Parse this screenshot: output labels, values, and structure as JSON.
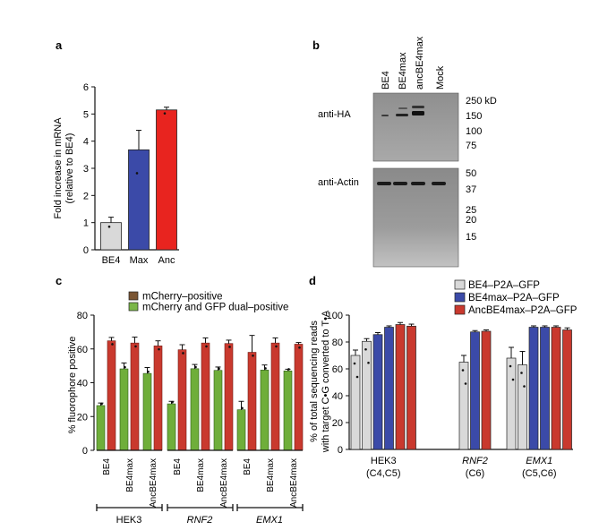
{
  "panels": {
    "a": "a",
    "b": "b",
    "c": "c",
    "d": "d"
  },
  "chart_data": [
    {
      "panel": "a",
      "type": "bar",
      "ylabel_lines": [
        "Fold increase in mRNA",
        "(relative to BE4)"
      ],
      "ylim": [
        0,
        6
      ],
      "yticks": [
        0,
        1,
        2,
        3,
        4,
        5,
        6
      ],
      "categories": [
        "BE4",
        "Max",
        "Anc"
      ],
      "values": [
        1.0,
        3.68,
        5.15
      ],
      "errors": [
        0.2,
        0.72,
        0.1
      ],
      "points": [
        [
          0.85
        ],
        [
          2.82
        ],
        [
          5.02
        ]
      ],
      "colors": [
        "#d9d9d9",
        "#3b4aa8",
        "#e8241f"
      ]
    },
    {
      "panel": "b",
      "type": "table",
      "lanes": [
        "BE4",
        "BE4max",
        "ancBE4max",
        "Mock"
      ],
      "blots": [
        {
          "label": "anti-HA",
          "markers": [
            "250 kD",
            "150",
            "100",
            "75"
          ]
        },
        {
          "label": "anti-Actin",
          "markers": [
            "50",
            "37",
            "25",
            "20",
            "15"
          ]
        }
      ]
    },
    {
      "panel": "c",
      "type": "bar",
      "ylabel": "% fluorophore positive",
      "ylim": [
        0,
        80
      ],
      "yticks": [
        0,
        20,
        40,
        60,
        80
      ],
      "series": [
        {
          "name": "mCherry–positive",
          "color": "#c9392e"
        },
        {
          "name": "mCherry and GFP dual–positive",
          "color": "#6fae3a"
        }
      ],
      "legend_colors": [
        "#7a5533",
        "#7ab648"
      ],
      "editors": [
        "BE4",
        "BE4max",
        "AncBE4max"
      ],
      "groups": [
        {
          "label": "HEK3",
          "italic": false,
          "mcherry": [
            64.8,
            63.5,
            61.8
          ],
          "dual": [
            26.5,
            48.2,
            45.5
          ],
          "mcherry_err": [
            2,
            3.5,
            3
          ],
          "dual_err": [
            1.5,
            3.5,
            3.5
          ]
        },
        {
          "label": "RNF2",
          "italic": true,
          "mcherry": [
            59.5,
            63.5,
            63.2
          ],
          "dual": [
            27.5,
            48.3,
            47.3
          ],
          "mcherry_err": [
            3,
            3,
            2
          ],
          "dual_err": [
            1.5,
            2.5,
            2
          ]
        },
        {
          "label": "EMX1",
          "italic": true,
          "mcherry": [
            58,
            63.5,
            62.8
          ],
          "dual": [
            24,
            47.5,
            47
          ],
          "mcherry_err": [
            10,
            3,
            1
          ],
          "dual_err": [
            5,
            3,
            1
          ]
        }
      ]
    },
    {
      "panel": "d",
      "type": "bar",
      "ylabel_lines": [
        "% of total sequencing reads",
        "with target C•G converted to T•A"
      ],
      "ylim": [
        0,
        100
      ],
      "yticks": [
        0,
        20,
        40,
        60,
        80,
        100
      ],
      "series": [
        {
          "name": "BE4–P2A–GFP",
          "color": "#d9d9d9"
        },
        {
          "name": "BE4max–P2A–GFP",
          "color": "#3b4aa8"
        },
        {
          "name": "AncBE4max–P2A–GFP",
          "color": "#c9392e"
        }
      ],
      "groups": [
        {
          "label": "HEK3",
          "italic": false,
          "sublabel": "(C4,C5)",
          "values": [
            [
              70,
              80.5
            ],
            [
              85.5,
              91
            ],
            [
              93,
              91.8
            ]
          ],
          "errors": [
            [
              4,
              2
            ],
            [
              1.5,
              1
            ],
            [
              1.5,
              1.5
            ]
          ]
        },
        {
          "label": "RNF2",
          "italic": true,
          "sublabel": "(C6)",
          "values": [
            [
              65
            ],
            [
              87.5
            ],
            [
              88
            ]
          ],
          "errors": [
            [
              5
            ],
            [
              1
            ],
            [
              1
            ]
          ]
        },
        {
          "label": "EMX1",
          "italic": true,
          "sublabel": "(C5,C6)",
          "values": [
            [
              68,
              63
            ],
            [
              91,
              91
            ],
            [
              91,
              89
            ]
          ],
          "errors": [
            [
              8,
              10
            ],
            [
              1,
              1
            ],
            [
              1,
              1.5
            ]
          ]
        }
      ]
    }
  ]
}
